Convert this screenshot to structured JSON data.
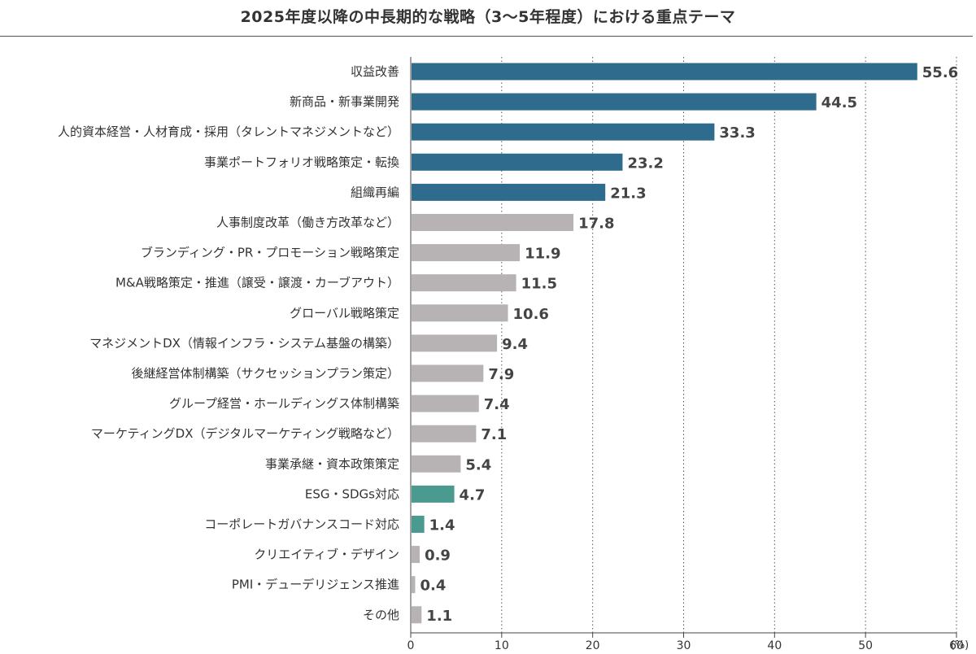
{
  "chart_data": {
    "type": "bar",
    "orientation": "horizontal",
    "title": "2025年度以降の中長期的な戦略（3〜5年程度）における重点テーマ",
    "xlabel": "",
    "ylabel": "",
    "unit": "(%)",
    "xlim": [
      0,
      60
    ],
    "xticks": [
      "0",
      "10",
      "20",
      "30",
      "40",
      "50",
      "60"
    ],
    "grid": true,
    "categories": [
      "収益改善",
      "新商品・新事業開発",
      "人的資本経営・人材育成・採用（タレントマネジメントなど）",
      "事業ポートフォリオ戦略策定・転換",
      "組織再編",
      "人事制度改革（働き方改革など）",
      "ブランディング・PR・プロモーション戦略策定",
      "M&A戦略策定・推進（譲受・譲渡・カーブアウト）",
      "グローバル戦略策定",
      "マネジメントDX（情報インフラ・システム基盤の構築）",
      "後継経営体制構築（サクセッションプラン策定）",
      "グループ経営・ホールディングス体制構築",
      "マーケティングDX（デジタルマーケティング戦略など）",
      "事業承継・資本政策策定",
      "ESG・SDGs対応",
      "コーポレートガバナンスコード対応",
      "クリエイティブ・デザイン",
      "PMI・デューデリジェンス推進",
      "その他"
    ],
    "values": [
      55.6,
      44.5,
      33.3,
      23.2,
      21.3,
      17.8,
      11.9,
      11.5,
      10.6,
      9.4,
      7.9,
      7.4,
      7.1,
      5.4,
      4.7,
      1.4,
      0.9,
      0.4,
      1.1
    ],
    "value_labels": [
      "55.6",
      "44.5",
      "33.3",
      "23.2",
      "21.3",
      "17.8",
      "11.9",
      "11.5",
      "10.6",
      "9.4",
      "7.9",
      "7.4",
      "7.1",
      "5.4",
      "4.7",
      "1.4",
      "0.9",
      "0.4",
      "1.1"
    ],
    "bar_groups": [
      "top",
      "top",
      "top",
      "top",
      "top",
      "other",
      "other",
      "other",
      "other",
      "other",
      "other",
      "other",
      "other",
      "other",
      "esg",
      "esg",
      "other",
      "other",
      "other"
    ],
    "colors": {
      "top": "#2e6b8c",
      "other": "#b7b3b5",
      "esg": "#4a9a90",
      "grid": "#555555",
      "axis": "#444444"
    }
  }
}
